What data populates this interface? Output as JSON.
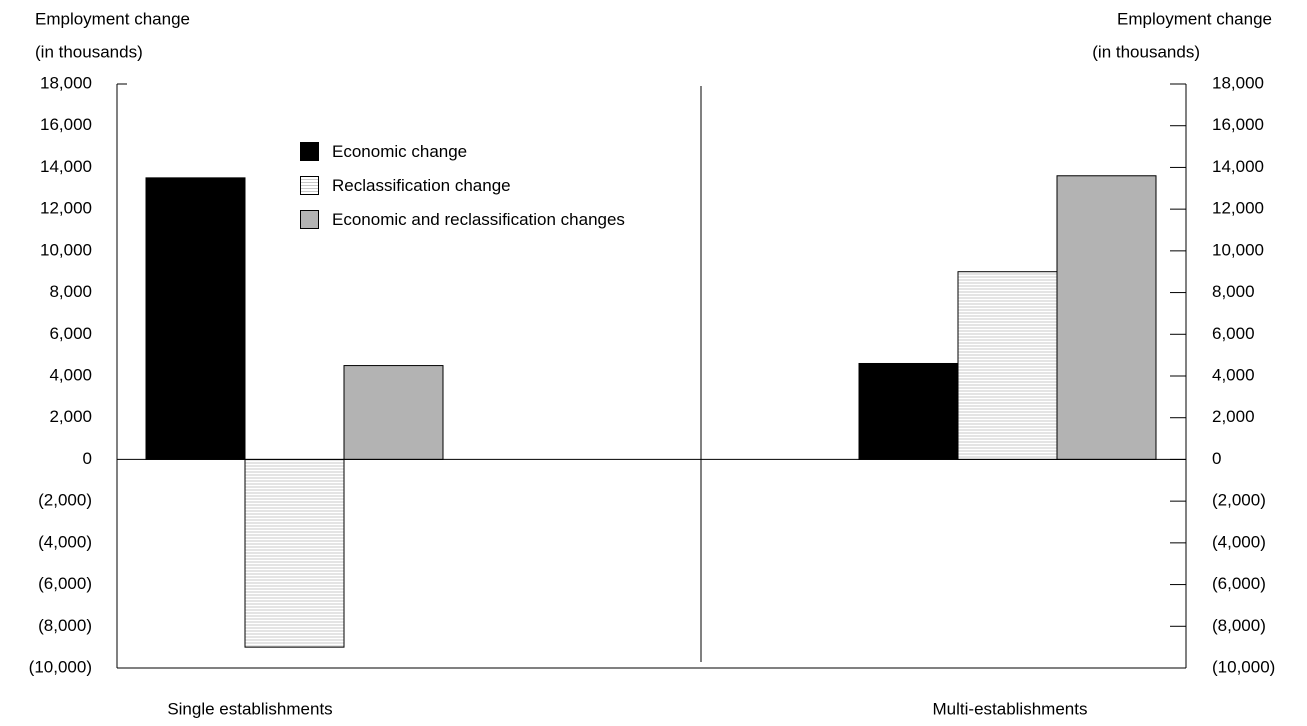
{
  "chart_data": {
    "type": "bar",
    "ylabel": [
      "Employment change",
      "(in thousands)"
    ],
    "y2label": [
      "Employment change",
      "(in thousands)"
    ],
    "categories": [
      "Single establishments",
      "Multi-establishments"
    ],
    "series": [
      {
        "name": "Economic change",
        "color": "#000000",
        "values": [
          13500,
          4600
        ]
      },
      {
        "name": "Reclassification change",
        "color": "#c8c8c8",
        "pattern": "horizontal-lines",
        "values": [
          -9000,
          9000
        ]
      },
      {
        "name": "Economic and reclassification changes",
        "color": "#b3b3b3",
        "values": [
          4500,
          13600
        ]
      }
    ],
    "ylim": [
      -10000,
      18000
    ],
    "yticks": [
      {
        "value": -10000,
        "label": "(10,000)"
      },
      {
        "value": -8000,
        "label": "(8,000)"
      },
      {
        "value": -6000,
        "label": "(6,000)"
      },
      {
        "value": -4000,
        "label": "(4,000)"
      },
      {
        "value": -2000,
        "label": "(2,000)"
      },
      0,
      {
        "value": 2000,
        "label": "2,000"
      },
      {
        "value": 4000,
        "label": "4,000"
      },
      {
        "value": 6000,
        "label": "6,000"
      },
      {
        "value": 8000,
        "label": "8,000"
      },
      {
        "value": 10000,
        "label": "10,000"
      },
      {
        "value": 12000,
        "label": "12,000"
      },
      {
        "value": 14000,
        "label": "14,000"
      },
      {
        "value": 16000,
        "label": "16,000"
      },
      {
        "value": 18000,
        "label": "18,000"
      }
    ],
    "y2lim": [
      -10000,
      18000
    ],
    "y2ticks": [
      {
        "value": -10000,
        "label": "(10,000)"
      },
      {
        "value": -8000,
        "label": "(8,000)"
      },
      {
        "value": -6000,
        "label": "(6,000)"
      },
      {
        "value": -4000,
        "label": "(4,000)"
      },
      {
        "value": -2000,
        "label": "(2,000)"
      },
      0,
      {
        "value": 2000,
        "label": "2,000"
      },
      {
        "value": 4000,
        "label": "4,000"
      },
      {
        "value": 6000,
        "label": "6,000"
      },
      {
        "value": 8000,
        "label": "8,000"
      },
      {
        "value": 10000,
        "label": "10,000"
      },
      {
        "value": 12000,
        "label": "12,000"
      },
      {
        "value": 14000,
        "label": "14,000"
      },
      {
        "value": 16000,
        "label": "16,000"
      },
      {
        "value": 18000,
        "label": "18,000"
      }
    ],
    "legend": "upper-left"
  }
}
